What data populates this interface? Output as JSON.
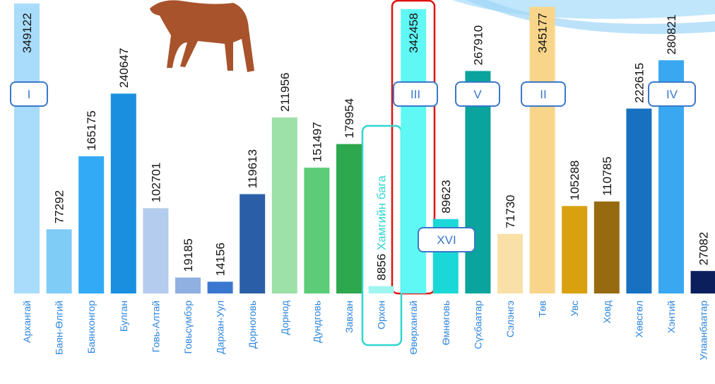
{
  "chart_data": {
    "type": "bar",
    "categories": [
      "Архангай",
      "Баян-Өлгий",
      "Баянхонгор",
      "Булган",
      "Говь-Алтай",
      "Говьсүмбэр",
      "Дархан-Уул",
      "Дорноговь",
      "Дорнод",
      "Дундговь",
      "Завхан",
      "Орхон",
      "Өвөрхангай",
      "Өмнөговь",
      "Сүхбаатар",
      "Сэлэнгэ",
      "Төв",
      "Увс",
      "Ховд",
      "Хөвсгөл",
      "Хэнтий",
      "Улаанбаатар"
    ],
    "values": [
      349122,
      77292,
      165175,
      240647,
      102701,
      19185,
      14156,
      119613,
      211956,
      151497,
      179954,
      8856,
      342458,
      89623,
      267910,
      71730,
      345177,
      105288,
      110785,
      222615,
      280821,
      27082
    ],
    "colors": [
      "#a9dcfa",
      "#7fccf7",
      "#33aaf5",
      "#1a8fe0",
      "#b4cced",
      "#8fb0e0",
      "#3a78d0",
      "#2a5fa8",
      "#9de0a8",
      "#5ccc78",
      "#2ea84e",
      "#9ff5f0",
      "#5ff8f5",
      "#1ad8d8",
      "#0aa39d",
      "#f8e0a8",
      "#f8d58a",
      "#d9a010",
      "#966b10",
      "#1870c0",
      "#3aa8f0",
      "#0a1f5c"
    ],
    "min_annotation": "Хамгийн бага",
    "rank_labels": [
      "I",
      "III",
      "XVI",
      "V",
      "II",
      "IV"
    ]
  }
}
